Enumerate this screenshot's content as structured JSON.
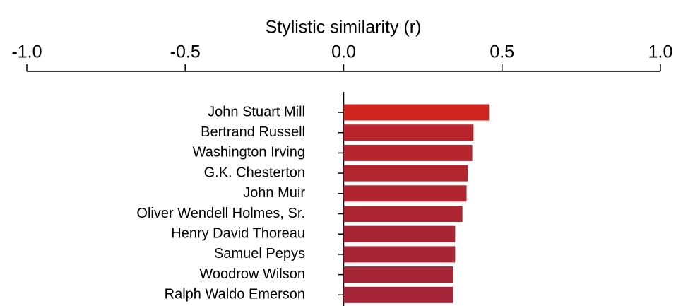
{
  "chart_data": {
    "type": "hbar",
    "title": "Stylistic similarity (r)",
    "categories": [
      "John Stuart Mill",
      "Bertrand Russell",
      "Washington Irving",
      "G.K. Chesterton",
      "John Muir",
      "Oliver Wendell Holmes, Sr.",
      "Henry David Thoreau",
      "Samuel Pepys",
      "Woodrow Wilson",
      "Ralph Waldo Emerson"
    ],
    "values": [
      0.459,
      0.41,
      0.406,
      0.392,
      0.388,
      0.375,
      0.352,
      0.352,
      0.346,
      0.346
    ],
    "colors": [
      "#d0241e",
      "#ba252d",
      "#b7252e",
      "#b3252f",
      "#b12530",
      "#ae2532",
      "#a92535",
      "#a82536",
      "#a62537",
      "#a52538"
    ],
    "xlim": [
      -1,
      1
    ],
    "xticks": [
      {
        "value": -1,
        "label": "-1.0"
      },
      {
        "value": -0.5,
        "label": "-0.5"
      },
      {
        "value": 0,
        "label": "0.0"
      },
      {
        "value": 0.5,
        "label": "0.5"
      },
      {
        "value": 1,
        "label": "1.0"
      }
    ]
  }
}
